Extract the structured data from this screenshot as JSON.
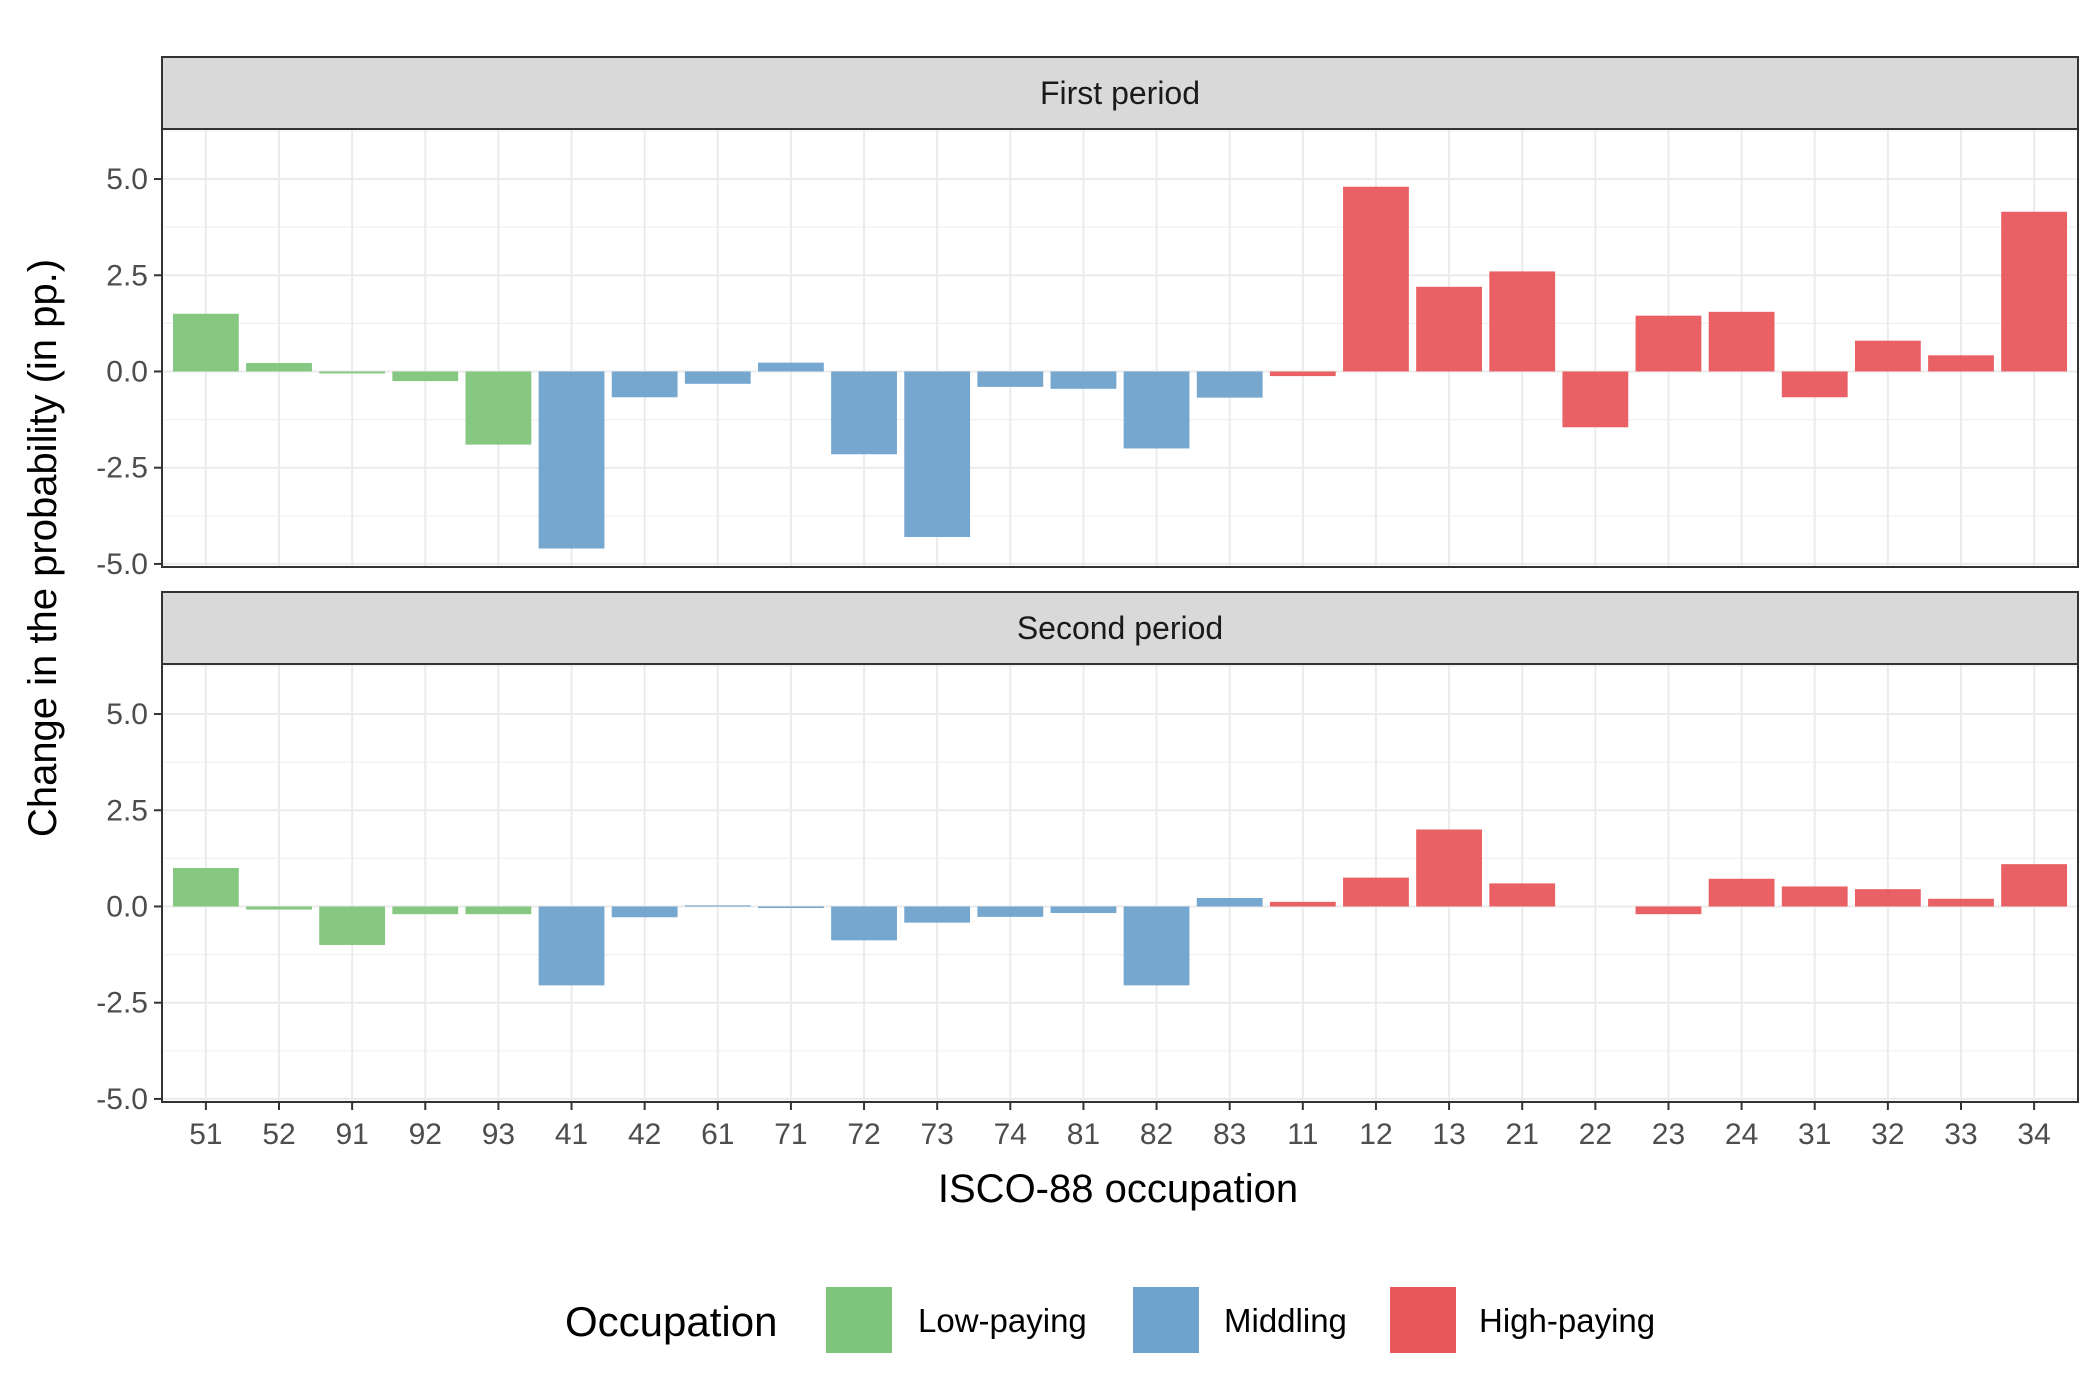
{
  "chart_data": {
    "type": "bar",
    "categories": [
      "51",
      "52",
      "91",
      "92",
      "93",
      "41",
      "42",
      "61",
      "71",
      "72",
      "73",
      "74",
      "81",
      "82",
      "83",
      "11",
      "12",
      "13",
      "21",
      "22",
      "23",
      "24",
      "31",
      "32",
      "33",
      "34"
    ],
    "category_groups": [
      "Low-paying",
      "Low-paying",
      "Low-paying",
      "Low-paying",
      "Low-paying",
      "Middling",
      "Middling",
      "Middling",
      "Middling",
      "Middling",
      "Middling",
      "Middling",
      "Middling",
      "Middling",
      "Middling",
      "High-paying",
      "High-paying",
      "High-paying",
      "High-paying",
      "High-paying",
      "High-paying",
      "High-paying",
      "High-paying",
      "High-paying",
      "High-paying",
      "High-paying"
    ],
    "panels": [
      {
        "title": "First period",
        "values": [
          1.5,
          0.22,
          -0.05,
          -0.25,
          -1.9,
          -4.6,
          -0.67,
          -0.32,
          0.23,
          -2.15,
          -4.3,
          -0.4,
          -0.45,
          -2.0,
          -0.68,
          -0.12,
          4.8,
          2.2,
          2.6,
          -1.45,
          1.45,
          1.55,
          -0.67,
          0.8,
          0.42,
          4.15
        ]
      },
      {
        "title": "Second period",
        "values": [
          1.0,
          -0.08,
          -1.0,
          -0.2,
          -0.2,
          -2.05,
          -0.28,
          0.03,
          -0.04,
          -0.88,
          -0.42,
          -0.27,
          -0.17,
          -2.05,
          0.22,
          0.12,
          0.75,
          2.0,
          0.6,
          0.0,
          -0.2,
          0.72,
          0.52,
          0.45,
          0.2,
          1.1
        ]
      }
    ],
    "ylim": [
      -5.0,
      5.0
    ],
    "yticks": [
      "-5.0",
      "-2.5",
      "0.0",
      "2.5",
      "5.0"
    ],
    "xlabel": "ISCO-88 occupation",
    "ylabel": "Change in the probability (in pp.)",
    "legend": {
      "title": "Occupation",
      "position": "bottom",
      "items": [
        {
          "label": "Low-paying",
          "color": "#7fc47b"
        },
        {
          "label": "Middling",
          "color": "#6fa2cc"
        },
        {
          "label": "High-paying",
          "color": "#e8585d"
        }
      ]
    },
    "grid": true
  }
}
